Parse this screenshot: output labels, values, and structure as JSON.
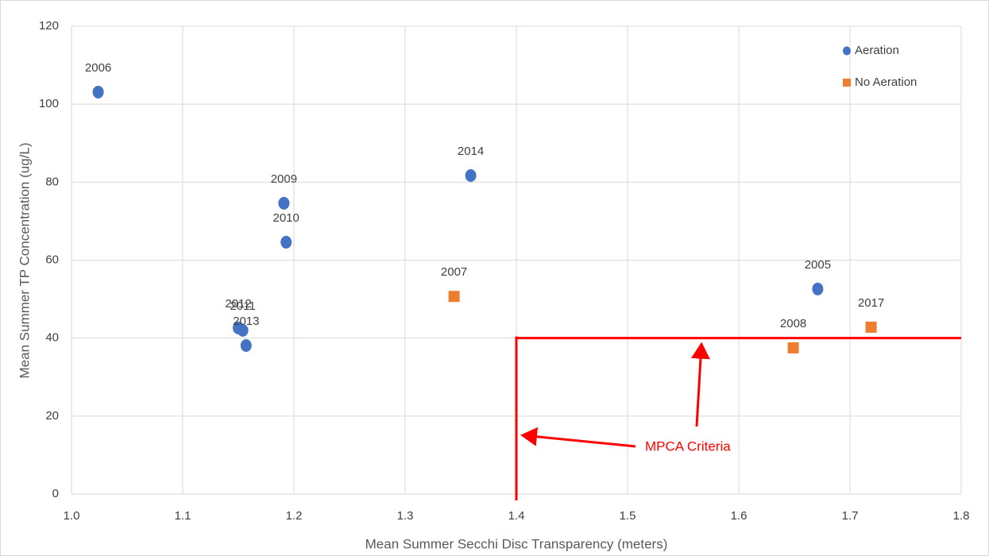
{
  "chart_data": {
    "type": "scatter",
    "x_label": "Mean Summer Secchi Disc Transparency (meters)",
    "y_label": "Mean Summer TP Concentration (ug/L)",
    "xlim": [
      1.0,
      1.8
    ],
    "xticks": [
      {
        "value": 1.0,
        "label": "1.0"
      },
      1.1,
      1.2,
      1.3,
      {
        "value": 1.4,
        "label": "1.4"
      },
      1.5,
      1.6,
      1.7,
      1.8
    ],
    "ylim": [
      0,
      120
    ],
    "yticks": [
      0,
      20,
      40,
      60,
      80,
      100,
      120
    ],
    "grid": true,
    "legend": "top-right",
    "series": [
      {
        "name": "Aeration",
        "color": "#4472c4",
        "marker": "circle",
        "x": [
          1.024,
          1.191,
          1.193,
          1.359,
          1.15,
          1.154,
          1.157,
          1.671
        ],
        "values": [
          103.1,
          74.6,
          64.6,
          81.7,
          42.6,
          42.0,
          38.1,
          52.6
        ],
        "labels": [
          "2006",
          "2009",
          "2010",
          "2014",
          "2012",
          "2011",
          "2013",
          "2005"
        ]
      },
      {
        "name": "No Aeration",
        "color": "#ed7d31",
        "marker": "square",
        "x": [
          1.344,
          1.649,
          1.719
        ],
        "values": [
          50.7,
          37.5,
          42.8
        ],
        "labels": [
          "2007",
          "2008",
          "2017"
        ]
      }
    ],
    "criteria": {
      "x": 1.4,
      "y": 40,
      "color": "#ff0000"
    },
    "annotation": "MPCA Criteria"
  }
}
